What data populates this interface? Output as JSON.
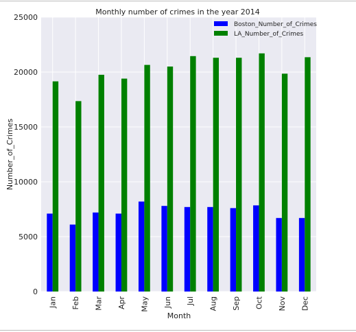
{
  "chart_data": {
    "type": "bar",
    "title": "Monthly number of crimes in the year 2014",
    "xlabel": "Month",
    "ylabel": "Number_of_Crimes",
    "categories": [
      "Jan",
      "Feb",
      "Mar",
      "Apr",
      "May",
      "Jun",
      "Jul",
      "Aug",
      "Sep",
      "Oct",
      "Nov",
      "Dec"
    ],
    "series": [
      {
        "name": "Boston_Number_of_Crimes",
        "color": "#0000ff",
        "values": [
          7100,
          6100,
          7200,
          7100,
          8200,
          7800,
          7700,
          7700,
          7600,
          7850,
          6700,
          6700
        ]
      },
      {
        "name": "LA_Number_of_Crimes",
        "color": "#008000",
        "values": [
          19150,
          17350,
          19750,
          19400,
          20650,
          20500,
          21450,
          21300,
          21300,
          21700,
          19850,
          21350
        ]
      }
    ],
    "ylim": [
      0,
      25000
    ],
    "yticks": [
      0,
      5000,
      10000,
      15000,
      20000,
      25000
    ],
    "grid": true,
    "legend_position": "top-right",
    "background": "#eaeaf2"
  }
}
